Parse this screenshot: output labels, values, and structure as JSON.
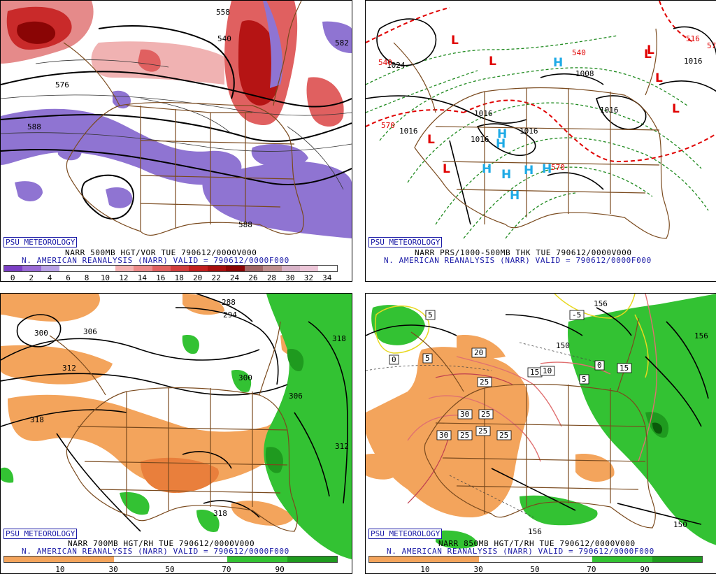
{
  "branding": "PSU METEOROLOGY",
  "panels": {
    "vort500": {
      "caption1": "NARR 500MB HGT/VOR TUE 790612/0000V000",
      "caption2": "N. AMERICAN REANALYSIS (NARR) VALID = 790612/0000F000",
      "contour_labels": [
        "558",
        "576",
        "588",
        "588",
        "540",
        "582"
      ],
      "legend_ticks": [
        "0",
        "2",
        "4",
        "6",
        "8",
        "10",
        "12",
        "14",
        "16",
        "18",
        "20",
        "22",
        "24",
        "26",
        "28",
        "30",
        "32",
        "34"
      ],
      "legend_colors": [
        "#7b3fc4",
        "#9a6bd6",
        "#b9a2e6",
        "#ffffff",
        "#ffffff",
        "#ffffff",
        "#f4b3b3",
        "#ec8a8a",
        "#e06060",
        "#d13e3e",
        "#c21f1f",
        "#a80f0f",
        "#8a0505",
        "#a06565",
        "#bf8f8f",
        "#d8b3c8",
        "#ecc6d8",
        "#ffffff"
      ],
      "colors": {
        "neg": "#8f74d2",
        "pos": "#d94a4a",
        "posdark": "#a61a1a"
      }
    },
    "pres1000": {
      "caption1": "NARR PRS/1000-500MB THK TUE 790612/0000V000",
      "caption2": "N. AMERICAN REANALYSIS (NARR) VALID = 790612/0000F000",
      "low_symbol": "L",
      "high_symbol": "H",
      "contour_labels": [
        "1024",
        "1016",
        "1016",
        "1016",
        "1016",
        "1016",
        "1016",
        "540",
        "540",
        "570",
        "570",
        "570",
        "1008",
        "516"
      ],
      "colors": {
        "low": "#e00000",
        "high": "#1eaae6"
      }
    },
    "rh700": {
      "caption1": "NARR 700MB HGT/RH TUE 790612/0000V000",
      "caption2": "N. AMERICAN REANALYSIS (NARR) VALID = 790612/0000F000",
      "contour_labels": [
        "300",
        "306",
        "312",
        "318",
        "294",
        "288",
        "300",
        "306",
        "318",
        "312",
        "318"
      ],
      "legend_ticks": [
        "10",
        "30",
        "50",
        "70",
        "90"
      ],
      "colors": {
        "dry": "#f3a45c",
        "dry2": "#f7c08a",
        "wet": "#33c233",
        "wet2": "#1f9a1f"
      }
    },
    "rh850": {
      "caption1": "NARR 850MB HGT/T/RH TUE 790612/0000V000",
      "caption2": "N. AMERICAN REANALYSIS (NARR) VALID = 790612/0000F000",
      "contour_labels": [
        "156",
        "150",
        "156",
        "150",
        "156"
      ],
      "temp_labels": [
        "5",
        "5",
        "-5",
        "20",
        "15",
        "10",
        "25",
        "25",
        "30",
        "25",
        "30",
        "25",
        "25",
        "5",
        "0",
        "0",
        "15"
      ],
      "legend_ticks": [
        "10",
        "30",
        "50",
        "70",
        "90"
      ],
      "colors": {
        "dry": "#f3a45c",
        "wet": "#33c233",
        "wet2": "#1f9a1f"
      }
    }
  }
}
